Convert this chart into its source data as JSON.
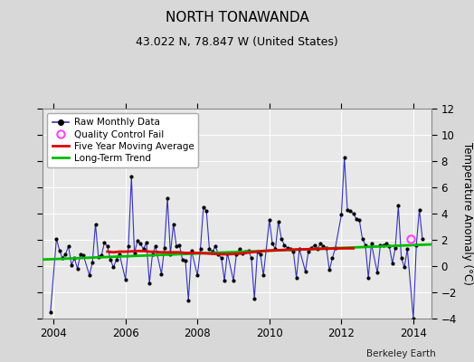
{
  "title": "NORTH TONAWANDA",
  "subtitle": "43.022 N, 78.847 W (United States)",
  "ylabel": "Temperature Anomaly (°C)",
  "credit": "Berkeley Earth",
  "ylim": [
    -4,
    12
  ],
  "yticks": [
    -4,
    -2,
    0,
    2,
    4,
    6,
    8,
    10,
    12
  ],
  "xlim": [
    2003.7,
    2014.5
  ],
  "xticks": [
    2004,
    2006,
    2008,
    2010,
    2012,
    2014
  ],
  "bg_color": "#d8d8d8",
  "plot_bg_color": "#e8e8e8",
  "raw_color": "#3333bb",
  "moving_avg_color": "#dd0000",
  "trend_color": "#00bb00",
  "qc_fail_color": "#ff44ff",
  "marker_color": "#000000",
  "raw_data_x": [
    2003.917,
    2004.083,
    2004.167,
    2004.25,
    2004.333,
    2004.417,
    2004.5,
    2004.583,
    2004.667,
    2004.75,
    2004.833,
    2005.0,
    2005.083,
    2005.167,
    2005.25,
    2005.333,
    2005.417,
    2005.5,
    2005.583,
    2005.667,
    2005.75,
    2005.833,
    2006.0,
    2006.083,
    2006.167,
    2006.25,
    2006.333,
    2006.417,
    2006.5,
    2006.583,
    2006.667,
    2006.75,
    2006.833,
    2007.0,
    2007.083,
    2007.167,
    2007.25,
    2007.333,
    2007.417,
    2007.5,
    2007.583,
    2007.667,
    2007.75,
    2007.833,
    2008.0,
    2008.083,
    2008.167,
    2008.25,
    2008.333,
    2008.417,
    2008.5,
    2008.583,
    2008.667,
    2008.75,
    2008.833,
    2009.0,
    2009.083,
    2009.167,
    2009.25,
    2009.333,
    2009.417,
    2009.5,
    2009.583,
    2009.667,
    2009.75,
    2009.833,
    2010.0,
    2010.083,
    2010.167,
    2010.25,
    2010.333,
    2010.417,
    2010.5,
    2010.583,
    2010.667,
    2010.75,
    2010.833,
    2011.0,
    2011.083,
    2011.167,
    2011.25,
    2011.333,
    2011.417,
    2011.5,
    2011.583,
    2011.667,
    2011.75,
    2011.833,
    2012.0,
    2012.083,
    2012.167,
    2012.25,
    2012.333,
    2012.417,
    2012.5,
    2012.583,
    2012.667,
    2012.75,
    2012.833,
    2013.0,
    2013.083,
    2013.167,
    2013.25,
    2013.333,
    2013.417,
    2013.5,
    2013.583,
    2013.667,
    2013.75,
    2013.833,
    2014.0,
    2014.083,
    2014.167,
    2014.25
  ],
  "raw_data_y": [
    -3.5,
    2.1,
    1.2,
    0.6,
    0.9,
    1.5,
    0.1,
    0.6,
    -0.2,
    0.9,
    0.8,
    -0.7,
    0.3,
    3.2,
    0.7,
    0.8,
    1.8,
    1.5,
    0.5,
    -0.1,
    0.5,
    0.9,
    -1.0,
    1.5,
    6.8,
    1.0,
    1.9,
    1.7,
    1.3,
    1.8,
    -1.3,
    0.9,
    1.5,
    -0.6,
    1.4,
    5.2,
    0.9,
    3.2,
    1.5,
    1.6,
    0.5,
    0.4,
    -2.6,
    1.2,
    -0.7,
    1.3,
    4.5,
    4.2,
    1.3,
    1.1,
    1.5,
    0.9,
    0.6,
    -1.1,
    1.0,
    -1.1,
    0.9,
    1.3,
    1.0,
    1.1,
    1.2,
    0.6,
    -2.5,
    1.1,
    0.9,
    -0.7,
    3.5,
    1.7,
    1.3,
    3.4,
    2.1,
    1.6,
    1.4,
    1.3,
    1.1,
    -0.9,
    1.3,
    -0.4,
    1.1,
    1.4,
    1.6,
    1.3,
    1.7,
    1.5,
    1.4,
    -0.3,
    0.6,
    1.4,
    3.9,
    8.3,
    4.3,
    4.2,
    4.0,
    3.6,
    3.5,
    2.1,
    1.6,
    -0.9,
    1.7,
    -0.5,
    1.6,
    1.6,
    1.7,
    1.5,
    0.2,
    1.4,
    4.6,
    0.6,
    -0.1,
    1.3,
    -4.0,
    1.6,
    4.3,
    2.1
  ],
  "moving_avg_x": [
    2005.5,
    2005.667,
    2005.833,
    2006.0,
    2006.167,
    2006.333,
    2006.5,
    2006.667,
    2006.833,
    2007.0,
    2007.167,
    2007.333,
    2007.5,
    2007.667,
    2007.833,
    2008.0,
    2008.167,
    2008.333,
    2008.5,
    2008.667,
    2008.833,
    2009.0,
    2009.167,
    2009.333,
    2009.5,
    2009.667,
    2009.833,
    2010.0,
    2010.167,
    2010.333,
    2010.5,
    2010.667,
    2010.833,
    2011.0,
    2011.167,
    2011.333,
    2011.5,
    2011.667,
    2011.833,
    2012.0,
    2012.167,
    2012.333
  ],
  "moving_avg_y": [
    1.1,
    1.05,
    1.1,
    1.1,
    1.12,
    1.15,
    1.15,
    1.1,
    1.08,
    1.05,
    1.05,
    1.05,
    1.05,
    1.0,
    1.0,
    1.0,
    0.98,
    0.95,
    0.92,
    0.9,
    0.9,
    0.92,
    0.95,
    1.0,
    1.05,
    1.1,
    1.15,
    1.18,
    1.2,
    1.22,
    1.25,
    1.25,
    1.27,
    1.28,
    1.3,
    1.32,
    1.32,
    1.33,
    1.34,
    1.35,
    1.35,
    1.35
  ],
  "trend_x": [
    2003.7,
    2014.5
  ],
  "trend_y": [
    0.5,
    1.65
  ],
  "qc_fail_x": [
    2013.917
  ],
  "qc_fail_y": [
    2.1
  ]
}
